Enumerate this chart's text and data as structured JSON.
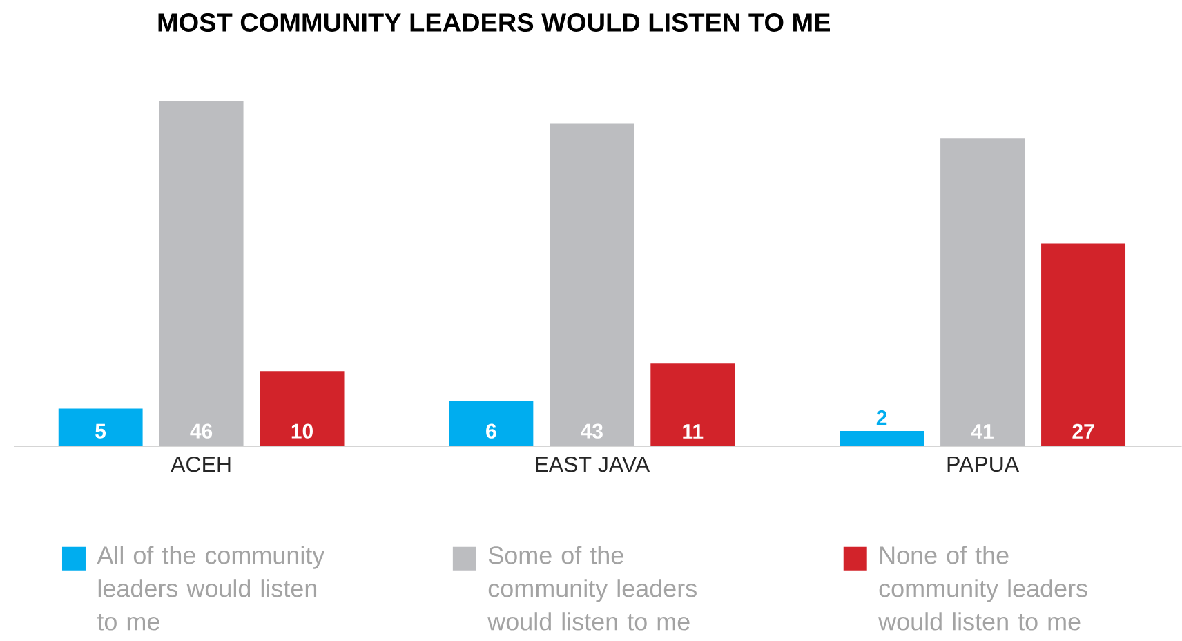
{
  "chart_data": {
    "type": "bar",
    "title": "MOST COMMUNITY LEADERS WOULD LISTEN TO ME",
    "categories": [
      "ACEH",
      "EAST JAVA",
      "PAPUA"
    ],
    "series": [
      {
        "name": "All of the community leaders would listen to me",
        "color": "#00adef",
        "values": [
          5,
          6,
          2
        ]
      },
      {
        "name": "Some of the community leaders would listen to me",
        "color": "#bcbdc0",
        "values": [
          46,
          43,
          41
        ]
      },
      {
        "name": "None of the community leaders would listen to me",
        "color": "#d2232a",
        "values": [
          10,
          11,
          27
        ]
      }
    ],
    "data_labels": true,
    "legend": "bottom"
  }
}
